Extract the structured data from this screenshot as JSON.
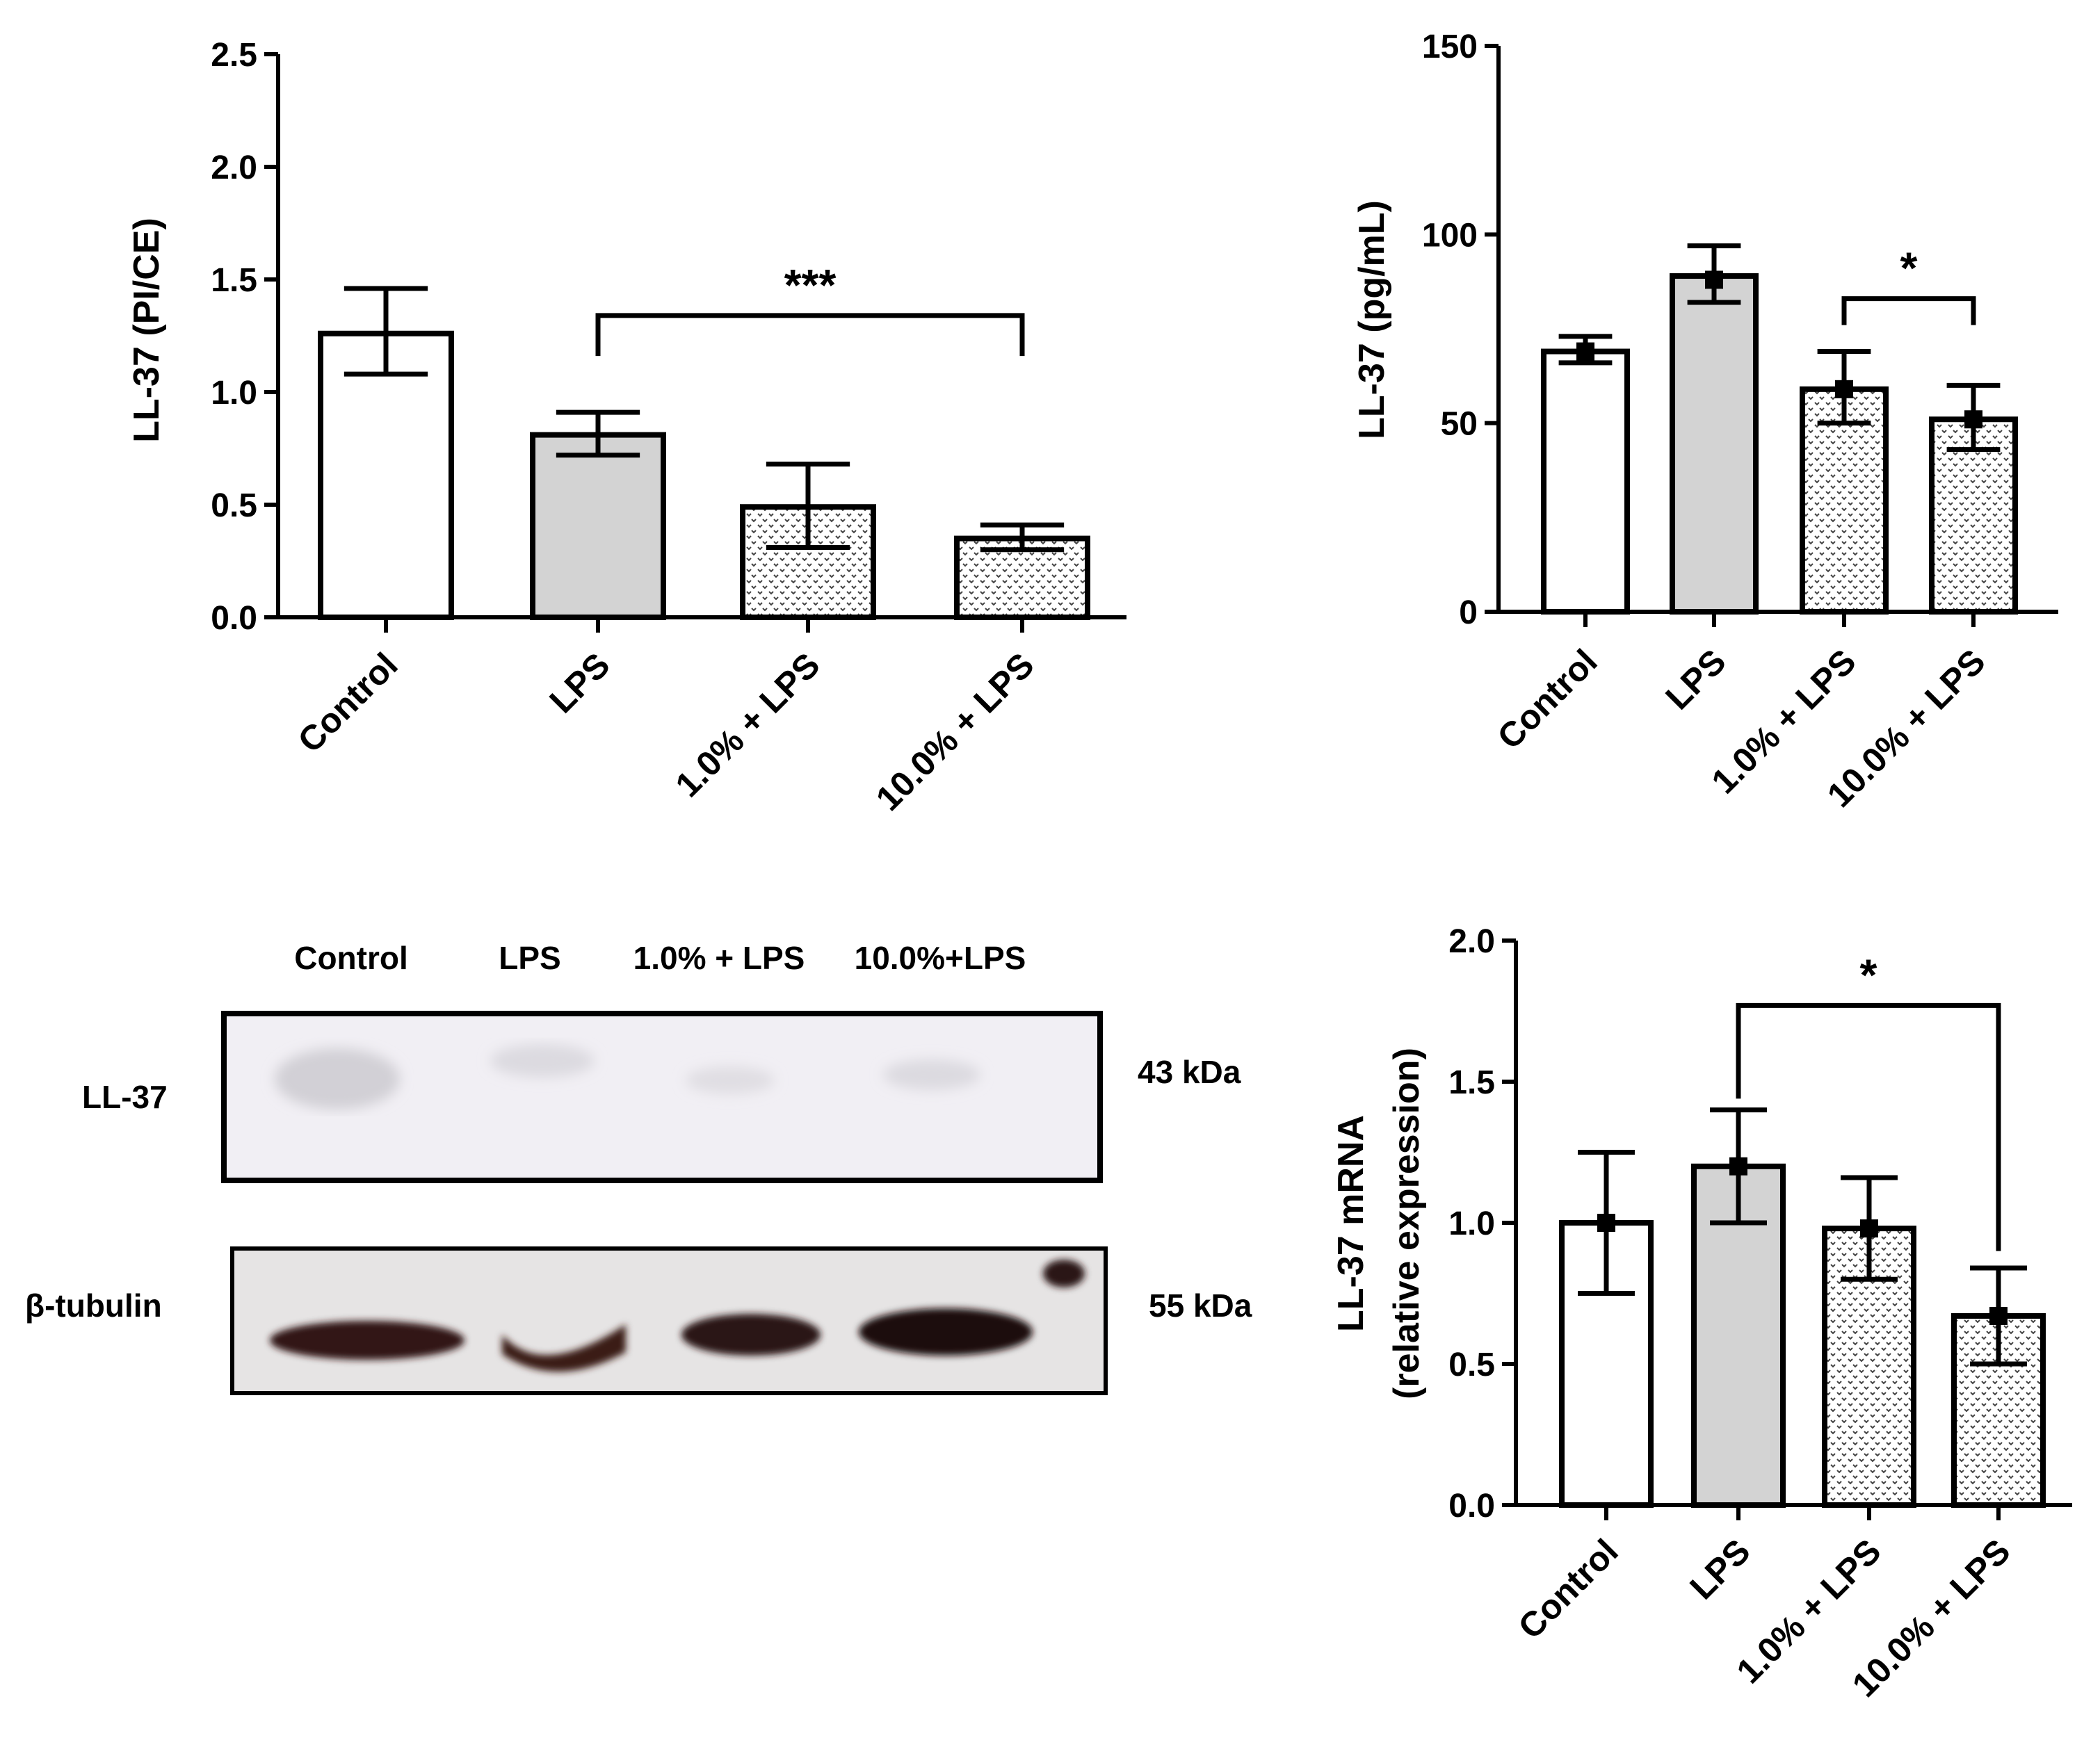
{
  "chart_data": [
    {
      "type": "bar",
      "categories": [
        "Control",
        "LPS",
        "1.0% + LPS",
        "10.0% + LPS"
      ],
      "values": [
        1.26,
        0.81,
        0.49,
        0.35
      ],
      "error_low": [
        1.08,
        0.72,
        0.31,
        0.3
      ],
      "error_high": [
        1.46,
        0.91,
        0.68,
        0.41
      ],
      "points": [],
      "title": "",
      "xlabel": "",
      "ylabel": "LL-37 (PI/CE)",
      "ylim": [
        0,
        2.5
      ],
      "yticks": [
        0.0,
        0.5,
        1.0,
        1.5,
        2.0,
        2.5
      ],
      "ytick_labels": [
        "0.0",
        "0.5",
        "1.0",
        "1.5",
        "2.0",
        "2.5"
      ],
      "fills": [
        "white",
        "gray",
        "dotted",
        "dotted"
      ],
      "significance": [
        {
          "from": 1,
          "to": 3,
          "label": "***",
          "bracket_y": 1.34,
          "leg_y": 1.16
        }
      ],
      "grid": false
    },
    {
      "type": "bar",
      "categories": [
        "Control",
        "LPS",
        "1.0% + LPS",
        "10.0% + LPS"
      ],
      "values": [
        69,
        89,
        59,
        51
      ],
      "error_low": [
        66,
        82,
        50,
        43
      ],
      "error_high": [
        73,
        97,
        69,
        60
      ],
      "points": [
        69,
        88,
        59,
        51
      ],
      "title": "",
      "xlabel": "",
      "ylabel": "LL-37 (pg/mL)",
      "ylim": [
        0,
        150
      ],
      "yticks": [
        0,
        50,
        100,
        150
      ],
      "ytick_labels": [
        "0",
        "50",
        "100",
        "150"
      ],
      "fills": [
        "white",
        "gray",
        "dotted",
        "dotted"
      ],
      "significance": [
        {
          "from": 2,
          "to": 3,
          "label": "*",
          "bracket_y": 83,
          "leg_y": 76
        }
      ],
      "grid": false
    },
    {
      "type": "bar",
      "categories": [
        "Control",
        "LPS",
        "1.0% + LPS",
        "10.0% + LPS"
      ],
      "values": [
        1.0,
        1.2,
        0.98,
        0.67
      ],
      "error_low": [
        0.75,
        1.0,
        0.8,
        0.5
      ],
      "error_high": [
        1.25,
        1.4,
        1.16,
        0.84
      ],
      "points": [
        1.0,
        1.2,
        0.98,
        0.67
      ],
      "title": "",
      "xlabel": "",
      "ylabel": "LL-37 mRNA",
      "ylabel2": "(relative expression)",
      "ylim": [
        0,
        2.0
      ],
      "yticks": [
        0.0,
        0.5,
        1.0,
        1.5,
        2.0
      ],
      "ytick_labels": [
        "0.0",
        "0.5",
        "1.0",
        "1.5",
        "2.0"
      ],
      "fills": [
        "white",
        "gray",
        "dotted",
        "dotted"
      ],
      "significance": [
        {
          "from": 1,
          "to": 3,
          "label": "*",
          "bracket_y": 1.77,
          "leg_y": 1.44,
          "leg_y_to": 0.9
        }
      ],
      "grid": false
    }
  ],
  "blot": {
    "lanes": [
      "Control",
      "LPS",
      "1.0% + LPS",
      "10.0%+LPS"
    ],
    "rows": [
      {
        "label": "LL-37",
        "kda": "43 kDa"
      },
      {
        "label": "β-tubulin",
        "kda": "55 kDa"
      }
    ]
  }
}
